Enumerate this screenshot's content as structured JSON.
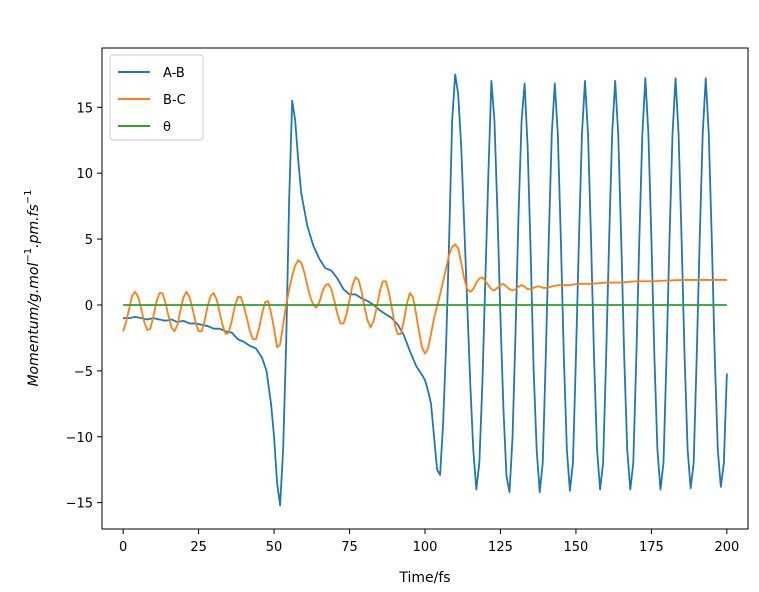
{
  "chart_data": {
    "type": "line",
    "title": "",
    "xlabel": "Time/fs",
    "ylabel_main": "Momentum/g.mol",
    "ylabel_sup1": "−1",
    "ylabel_mid": ".pm.fs",
    "ylabel_sup2": "−1",
    "xlim": [
      -7,
      207
    ],
    "ylim": [
      -17,
      19.5
    ],
    "x_ticks": [
      0,
      25,
      50,
      75,
      100,
      125,
      150,
      175,
      200
    ],
    "y_ticks": [
      -15,
      -10,
      -5,
      0,
      5,
      10,
      15
    ],
    "x_tick_labels": [
      "0",
      "25",
      "50",
      "75",
      "100",
      "125",
      "150",
      "175",
      "200"
    ],
    "y_tick_labels": [
      "−15",
      "−10",
      "−5",
      "0",
      "5",
      "10",
      "15"
    ],
    "grid": false,
    "legend_position": "top-left",
    "series": [
      {
        "name": "A-B",
        "color": "#1f77b4",
        "points": [
          [
            0,
            -1.0
          ],
          [
            2,
            -1.0
          ],
          [
            4,
            -0.9
          ],
          [
            6,
            -1.0
          ],
          [
            8,
            -1.1
          ],
          [
            10,
            -1.0
          ],
          [
            12,
            -1.1
          ],
          [
            14,
            -1.2
          ],
          [
            16,
            -1.1
          ],
          [
            18,
            -1.3
          ],
          [
            20,
            -1.2
          ],
          [
            22,
            -1.4
          ],
          [
            24,
            -1.4
          ],
          [
            26,
            -1.5
          ],
          [
            28,
            -1.6
          ],
          [
            30,
            -1.8
          ],
          [
            32,
            -1.8
          ],
          [
            34,
            -2.0
          ],
          [
            36,
            -2.1
          ],
          [
            38,
            -2.6
          ],
          [
            40,
            -2.8
          ],
          [
            42,
            -3.1
          ],
          [
            44,
            -3.3
          ],
          [
            46,
            -4.0
          ],
          [
            47.5,
            -5.0
          ],
          [
            49,
            -7.5
          ],
          [
            50,
            -10.0
          ],
          [
            51,
            -13.5
          ],
          [
            52,
            -15.2
          ],
          [
            53,
            -11.0
          ],
          [
            54,
            -3.0
          ],
          [
            55,
            8.0
          ],
          [
            56,
            15.5
          ],
          [
            57,
            14.0
          ],
          [
            58,
            11.0
          ],
          [
            59,
            8.5
          ],
          [
            61,
            6.0
          ],
          [
            63,
            4.5
          ],
          [
            65,
            3.5
          ],
          [
            67,
            2.8
          ],
          [
            69,
            2.6
          ],
          [
            71,
            2.0
          ],
          [
            73,
            1.2
          ],
          [
            75,
            0.8
          ],
          [
            77,
            0.8
          ],
          [
            79,
            0.5
          ],
          [
            81,
            0.3
          ],
          [
            83,
            0.0
          ],
          [
            85,
            -0.4
          ],
          [
            87,
            -0.7
          ],
          [
            89,
            -1.0
          ],
          [
            91,
            -1.5
          ],
          [
            93,
            -2.3
          ],
          [
            95,
            -3.5
          ],
          [
            97,
            -4.6
          ],
          [
            99,
            -5.3
          ],
          [
            100,
            -5.7
          ],
          [
            101,
            -6.5
          ],
          [
            102,
            -7.5
          ],
          [
            103,
            -10.0
          ],
          [
            104,
            -12.5
          ],
          [
            105,
            -12.9
          ],
          [
            106,
            -9.0
          ],
          [
            107,
            -3.0
          ],
          [
            108,
            5.0
          ],
          [
            109,
            14.0
          ],
          [
            110,
            17.5
          ],
          [
            111,
            16.0
          ],
          [
            112,
            12.0
          ],
          [
            113,
            6.0
          ],
          [
            114,
            0.0
          ],
          [
            115,
            -6.0
          ],
          [
            116,
            -11.0
          ],
          [
            117,
            -14.0
          ],
          [
            118,
            -12.0
          ],
          [
            119,
            -6.0
          ],
          [
            120,
            2.0
          ],
          [
            121,
            10.0
          ],
          [
            122,
            17.0
          ],
          [
            123,
            14.0
          ],
          [
            124,
            7.0
          ],
          [
            125,
            -1.0
          ],
          [
            126,
            -8.0
          ],
          [
            127,
            -13.0
          ],
          [
            128,
            -14.2
          ],
          [
            129,
            -10.0
          ],
          [
            130,
            -2.0
          ],
          [
            131,
            7.0
          ],
          [
            132,
            14.0
          ],
          [
            133,
            16.8
          ],
          [
            134,
            12.0
          ],
          [
            135,
            4.0
          ],
          [
            136,
            -5.0
          ],
          [
            137,
            -11.0
          ],
          [
            138,
            -14.2
          ],
          [
            139,
            -12.0
          ],
          [
            140,
            -4.0
          ],
          [
            141,
            5.0
          ],
          [
            142,
            13.0
          ],
          [
            143,
            16.8
          ],
          [
            144,
            13.0
          ],
          [
            145,
            5.0
          ],
          [
            146,
            -4.0
          ],
          [
            147,
            -11.0
          ],
          [
            148,
            -14.1
          ],
          [
            149,
            -12.0
          ],
          [
            150,
            -4.0
          ],
          [
            151,
            5.0
          ],
          [
            152,
            13.0
          ],
          [
            153,
            17.0
          ],
          [
            154,
            13.0
          ],
          [
            155,
            5.0
          ],
          [
            156,
            -4.0
          ],
          [
            157,
            -11.0
          ],
          [
            158,
            -14.0
          ],
          [
            159,
            -12.0
          ],
          [
            160,
            -4.0
          ],
          [
            161,
            5.0
          ],
          [
            162,
            13.0
          ],
          [
            163,
            17.0
          ],
          [
            164,
            13.0
          ],
          [
            165,
            5.0
          ],
          [
            166,
            -4.0
          ],
          [
            167,
            -11.0
          ],
          [
            168,
            -14.0
          ],
          [
            169,
            -12.0
          ],
          [
            170,
            -4.0
          ],
          [
            171,
            5.0
          ],
          [
            172,
            13.0
          ],
          [
            173,
            17.2
          ],
          [
            174,
            13.0
          ],
          [
            175,
            5.0
          ],
          [
            176,
            -4.0
          ],
          [
            177,
            -11.0
          ],
          [
            178,
            -14.0
          ],
          [
            179,
            -12.0
          ],
          [
            180,
            -4.0
          ],
          [
            181,
            5.0
          ],
          [
            182,
            13.0
          ],
          [
            183,
            17.2
          ],
          [
            184,
            13.0
          ],
          [
            185,
            5.0
          ],
          [
            186,
            -4.0
          ],
          [
            187,
            -11.0
          ],
          [
            188,
            -13.9
          ],
          [
            189,
            -12.0
          ],
          [
            190,
            -4.0
          ],
          [
            191,
            5.0
          ],
          [
            192,
            13.0
          ],
          [
            193,
            17.2
          ],
          [
            194,
            13.0
          ],
          [
            195,
            5.0
          ],
          [
            196,
            -4.0
          ],
          [
            197,
            -11.0
          ],
          [
            198,
            -13.8
          ],
          [
            199,
            -12.0
          ],
          [
            200,
            -5.2
          ]
        ]
      },
      {
        "name": "B-C",
        "color": "#ff7f0e",
        "points": [
          [
            0,
            -2.0
          ],
          [
            1,
            -1.3
          ],
          [
            2,
            -0.3
          ],
          [
            3,
            0.7
          ],
          [
            4,
            1.0
          ],
          [
            5,
            0.6
          ],
          [
            6,
            -0.3
          ],
          [
            7,
            -1.3
          ],
          [
            8,
            -1.9
          ],
          [
            9,
            -1.8
          ],
          [
            10,
            -0.9
          ],
          [
            11,
            0.2
          ],
          [
            12,
            0.9
          ],
          [
            13,
            0.9
          ],
          [
            14,
            0.2
          ],
          [
            15,
            -0.8
          ],
          [
            16,
            -1.7
          ],
          [
            17,
            -2.0
          ],
          [
            18,
            -1.5
          ],
          [
            19,
            -0.4
          ],
          [
            20,
            0.6
          ],
          [
            21,
            1.0
          ],
          [
            22,
            0.6
          ],
          [
            23,
            -0.3
          ],
          [
            24,
            -1.3
          ],
          [
            25,
            -2.0
          ],
          [
            26,
            -2.0
          ],
          [
            27,
            -1.2
          ],
          [
            28,
            -0.1
          ],
          [
            29,
            0.7
          ],
          [
            30,
            0.9
          ],
          [
            31,
            0.4
          ],
          [
            32,
            -0.6
          ],
          [
            33,
            -1.6
          ],
          [
            34,
            -2.2
          ],
          [
            35,
            -2.1
          ],
          [
            36,
            -1.2
          ],
          [
            37,
            -0.1
          ],
          [
            38,
            0.6
          ],
          [
            39,
            0.6
          ],
          [
            40,
            -0.1
          ],
          [
            41,
            -1.0
          ],
          [
            42,
            -2.0
          ],
          [
            43,
            -2.6
          ],
          [
            44,
            -2.6
          ],
          [
            45,
            -1.8
          ],
          [
            46,
            -0.7
          ],
          [
            47,
            0.2
          ],
          [
            48,
            0.3
          ],
          [
            49,
            -0.6
          ],
          [
            50,
            -1.8
          ],
          [
            51,
            -3.2
          ],
          [
            52,
            -3.0
          ],
          [
            53,
            -1.5
          ],
          [
            54,
            0.0
          ],
          [
            55,
            1.2
          ],
          [
            56,
            2.2
          ],
          [
            57,
            3.0
          ],
          [
            58,
            3.4
          ],
          [
            59,
            3.2
          ],
          [
            60,
            2.5
          ],
          [
            61,
            1.5
          ],
          [
            62,
            0.6
          ],
          [
            63,
            0.0
          ],
          [
            64,
            -0.2
          ],
          [
            65,
            0.2
          ],
          [
            66,
            1.0
          ],
          [
            67,
            1.5
          ],
          [
            68,
            1.6
          ],
          [
            69,
            1.2
          ],
          [
            70,
            0.3
          ],
          [
            71,
            -0.7
          ],
          [
            72,
            -1.4
          ],
          [
            73,
            -1.4
          ],
          [
            74,
            -0.7
          ],
          [
            75,
            0.4
          ],
          [
            76,
            1.5
          ],
          [
            77,
            2.1
          ],
          [
            78,
            1.9
          ],
          [
            79,
            1.0
          ],
          [
            80,
            -0.2
          ],
          [
            81,
            -1.2
          ],
          [
            82,
            -1.7
          ],
          [
            83,
            -1.2
          ],
          [
            84,
            -0.2
          ],
          [
            85,
            1.0
          ],
          [
            86,
            1.8
          ],
          [
            87,
            1.8
          ],
          [
            88,
            1.0
          ],
          [
            89,
            -0.2
          ],
          [
            90,
            -1.5
          ],
          [
            91,
            -2.2
          ],
          [
            92,
            -2.2
          ],
          [
            93,
            -1.2
          ],
          [
            94,
            0.1
          ],
          [
            95,
            0.9
          ],
          [
            96,
            0.6
          ],
          [
            97,
            -0.6
          ],
          [
            98,
            -2.0
          ],
          [
            99,
            -3.2
          ],
          [
            100,
            -3.7
          ],
          [
            101,
            -3.3
          ],
          [
            102,
            -2.2
          ],
          [
            103,
            -1.0
          ],
          [
            104,
            -0.1
          ],
          [
            105,
            0.8
          ],
          [
            106,
            1.8
          ],
          [
            107,
            2.8
          ],
          [
            108,
            3.8
          ],
          [
            109,
            4.4
          ],
          [
            110,
            4.6
          ],
          [
            111,
            4.3
          ],
          [
            112,
            3.2
          ],
          [
            113,
            2.0
          ],
          [
            114,
            1.2
          ],
          [
            115,
            1.0
          ],
          [
            116,
            1.2
          ],
          [
            117,
            1.7
          ],
          [
            118,
            2.0
          ],
          [
            119,
            2.1
          ],
          [
            120,
            1.8
          ],
          [
            121,
            1.5
          ],
          [
            122,
            1.2
          ],
          [
            123,
            1.1
          ],
          [
            124,
            1.3
          ],
          [
            125,
            1.5
          ],
          [
            126,
            1.6
          ],
          [
            127,
            1.4
          ],
          [
            128,
            1.2
          ],
          [
            129,
            1.1
          ],
          [
            130,
            1.2
          ],
          [
            131,
            1.4
          ],
          [
            132,
            1.5
          ],
          [
            133,
            1.4
          ],
          [
            134,
            1.2
          ],
          [
            135,
            1.2
          ],
          [
            136,
            1.3
          ],
          [
            137,
            1.4
          ],
          [
            138,
            1.4
          ],
          [
            139,
            1.3
          ],
          [
            140,
            1.3
          ],
          [
            142,
            1.4
          ],
          [
            144,
            1.5
          ],
          [
            146,
            1.5
          ],
          [
            148,
            1.5
          ],
          [
            150,
            1.6
          ],
          [
            155,
            1.6
          ],
          [
            160,
            1.7
          ],
          [
            165,
            1.7
          ],
          [
            170,
            1.8
          ],
          [
            175,
            1.8
          ],
          [
            180,
            1.85
          ],
          [
            185,
            1.9
          ],
          [
            190,
            1.9
          ],
          [
            195,
            1.9
          ],
          [
            200,
            1.9
          ]
        ]
      },
      {
        "name": "θ",
        "color": "#2ca02c",
        "points": [
          [
            0,
            0
          ],
          [
            200,
            0
          ]
        ]
      }
    ]
  }
}
